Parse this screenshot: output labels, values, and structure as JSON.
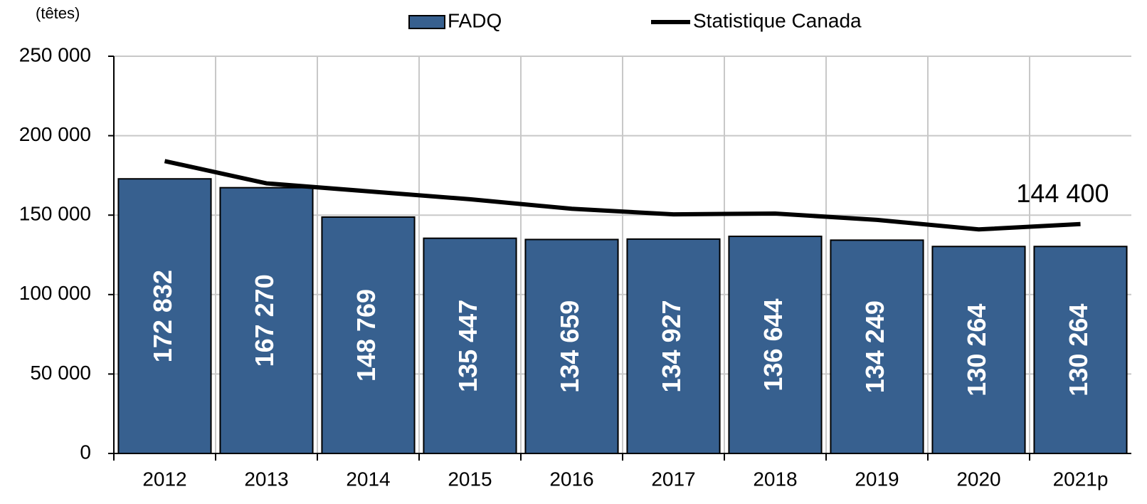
{
  "chart_data": {
    "type": "bar",
    "y_label": "(têtes)",
    "categories": [
      "2012",
      "2013",
      "2014",
      "2015",
      "2016",
      "2017",
      "2018",
      "2019",
      "2020",
      "2021p"
    ],
    "series": [
      {
        "name": "FADQ",
        "type": "bar",
        "color": "#37608f",
        "values": [
          172832,
          167270,
          148769,
          135447,
          134659,
          134927,
          136644,
          134249,
          130264,
          130264
        ],
        "value_labels": [
          "172 832",
          "167 270",
          "148 769",
          "135 447",
          "134 659",
          "134 927",
          "136 644",
          "134 249",
          "130 264",
          "130 264"
        ]
      },
      {
        "name": "Statistique Canada",
        "type": "line",
        "color": "#000000",
        "values": [
          184000,
          170000,
          165000,
          160000,
          154000,
          150500,
          151000,
          147000,
          141000,
          144400
        ],
        "value_labels": [
          null,
          null,
          null,
          null,
          null,
          null,
          null,
          null,
          null,
          "144 400"
        ]
      }
    ],
    "ylim": [
      0,
      250000
    ],
    "yticks": [
      0,
      {
        "value": 50000,
        "label": "50 000"
      },
      {
        "value": 100000,
        "label": "100 000"
      },
      {
        "value": 150000,
        "label": "150 000"
      },
      {
        "value": 200000,
        "label": "200 000"
      },
      {
        "value": 250000,
        "label": "250 000"
      }
    ],
    "grid": true
  }
}
